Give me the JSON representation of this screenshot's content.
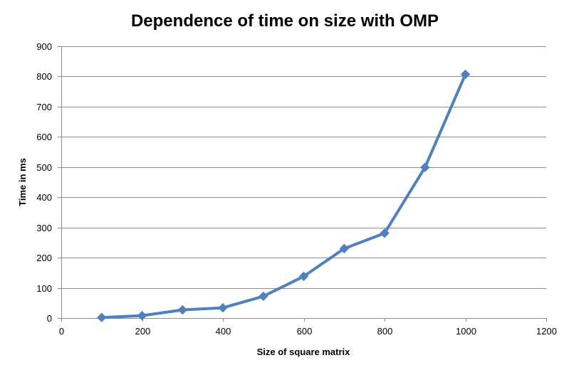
{
  "chart_data": {
    "type": "line",
    "title": "Dependence of time on size with OMP",
    "xlabel": "Size of square matrix",
    "ylabel": "Time in ms",
    "xlim": [
      0,
      1200
    ],
    "ylim": [
      0,
      900
    ],
    "x_ticks": [
      0,
      200,
      400,
      600,
      800,
      1000,
      1200
    ],
    "y_ticks": [
      0,
      100,
      200,
      300,
      400,
      500,
      600,
      700,
      800,
      900
    ],
    "grid": true,
    "legend": "none",
    "marker": "diamond",
    "series": [
      {
        "color": "#4f81bd",
        "x": [
          100,
          200,
          300,
          400,
          500,
          600,
          700,
          800,
          900,
          1000
        ],
        "y": [
          2,
          8,
          27,
          34,
          72,
          138,
          230,
          281,
          499,
          807
        ]
      }
    ]
  }
}
